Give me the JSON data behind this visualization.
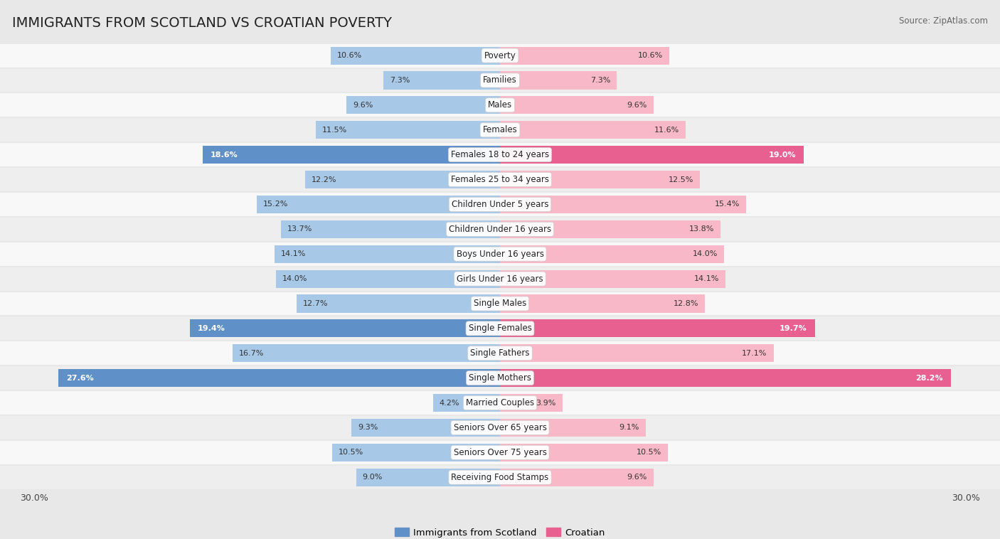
{
  "title": "IMMIGRANTS FROM SCOTLAND VS CROATIAN POVERTY",
  "source": "Source: ZipAtlas.com",
  "categories": [
    "Poverty",
    "Families",
    "Males",
    "Females",
    "Females 18 to 24 years",
    "Females 25 to 34 years",
    "Children Under 5 years",
    "Children Under 16 years",
    "Boys Under 16 years",
    "Girls Under 16 years",
    "Single Males",
    "Single Females",
    "Single Fathers",
    "Single Mothers",
    "Married Couples",
    "Seniors Over 65 years",
    "Seniors Over 75 years",
    "Receiving Food Stamps"
  ],
  "scotland_values": [
    10.6,
    7.3,
    9.6,
    11.5,
    18.6,
    12.2,
    15.2,
    13.7,
    14.1,
    14.0,
    12.7,
    19.4,
    16.7,
    27.6,
    4.2,
    9.3,
    10.5,
    9.0
  ],
  "croatian_values": [
    10.6,
    7.3,
    9.6,
    11.6,
    19.0,
    12.5,
    15.4,
    13.8,
    14.0,
    14.1,
    12.8,
    19.7,
    17.1,
    28.2,
    3.9,
    9.1,
    10.5,
    9.6
  ],
  "scotland_color_normal": "#a8c8e8",
  "croatian_color_normal": "#f8b8c8",
  "scotland_color_highlight": "#6090c8",
  "croatian_color_highlight": "#e86090",
  "highlight_rows": [
    4,
    11,
    13
  ],
  "bg_color": "#e8e8e8",
  "row_bg_even": "#f8f8f8",
  "row_bg_odd": "#eeeeee",
  "max_value": 30.0,
  "legend_scotland": "Immigrants from Scotland",
  "legend_croatian": "Croatian",
  "bar_height": 0.72,
  "label_fontsize": 8.0,
  "title_fontsize": 14,
  "category_fontsize": 8.5,
  "source_fontsize": 8.5
}
